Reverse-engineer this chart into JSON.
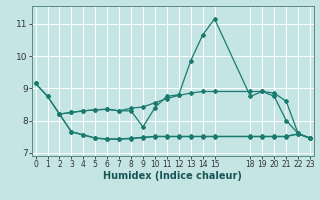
{
  "xlabel": "Humidex (Indice chaleur)",
  "background_color": "#c5e5e5",
  "grid_color": "#ffffff",
  "line_color": "#1a7a6e",
  "xlim": [
    -0.3,
    23.3
  ],
  "ylim": [
    6.9,
    11.55
  ],
  "yticks": [
    7,
    8,
    9,
    10,
    11
  ],
  "xticks": [
    0,
    1,
    2,
    3,
    4,
    5,
    6,
    7,
    8,
    9,
    10,
    11,
    12,
    13,
    14,
    15,
    18,
    19,
    20,
    21,
    22,
    23
  ],
  "xtick_labels": [
    "0",
    "1",
    "2",
    "3",
    "4",
    "5",
    "6",
    "7",
    "8",
    "9",
    "10",
    "11",
    "12",
    "13",
    "14",
    "15",
    "18",
    "19",
    "20",
    "21",
    "22",
    "23"
  ],
  "series": [
    {
      "x": [
        0,
        1,
        2,
        3,
        4,
        5,
        6,
        7,
        8,
        9,
        10,
        11,
        12,
        13,
        14,
        15,
        18,
        19,
        20,
        21,
        22,
        23
      ],
      "y": [
        9.15,
        8.75,
        8.2,
        8.25,
        8.3,
        8.33,
        8.35,
        8.3,
        8.3,
        7.8,
        8.4,
        8.75,
        8.8,
        9.85,
        10.65,
        11.15,
        8.75,
        8.9,
        8.75,
        8.0,
        7.6,
        7.45
      ]
    },
    {
      "x": [
        0,
        1,
        2,
        3,
        4,
        5,
        6,
        7,
        8,
        9,
        10,
        11,
        12,
        13,
        14,
        15,
        18,
        19,
        20,
        21,
        22,
        23
      ],
      "y": [
        9.15,
        8.75,
        8.2,
        8.25,
        8.3,
        8.33,
        8.35,
        8.3,
        8.38,
        8.42,
        8.55,
        8.68,
        8.78,
        8.85,
        8.9,
        8.9,
        8.9,
        8.9,
        8.85,
        8.6,
        7.6,
        7.45
      ]
    },
    {
      "x": [
        2,
        3,
        4,
        5,
        6,
        7,
        8,
        9,
        10,
        11,
        12,
        13,
        14,
        15,
        18,
        19,
        20,
        21,
        22,
        23
      ],
      "y": [
        8.2,
        7.65,
        7.55,
        7.45,
        7.42,
        7.42,
        7.44,
        7.47,
        7.5,
        7.5,
        7.5,
        7.5,
        7.5,
        7.5,
        7.5,
        7.5,
        7.5,
        7.5,
        7.58,
        7.45
      ]
    },
    {
      "x": [
        2,
        3,
        4,
        5,
        6,
        7,
        8,
        9,
        10,
        11,
        12,
        13,
        14,
        15,
        18,
        19,
        20,
        21,
        22,
        23
      ],
      "y": [
        8.2,
        7.65,
        7.56,
        7.46,
        7.43,
        7.43,
        7.45,
        7.48,
        7.51,
        7.51,
        7.51,
        7.51,
        7.51,
        7.51,
        7.51,
        7.51,
        7.51,
        7.51,
        7.59,
        7.46
      ]
    }
  ]
}
